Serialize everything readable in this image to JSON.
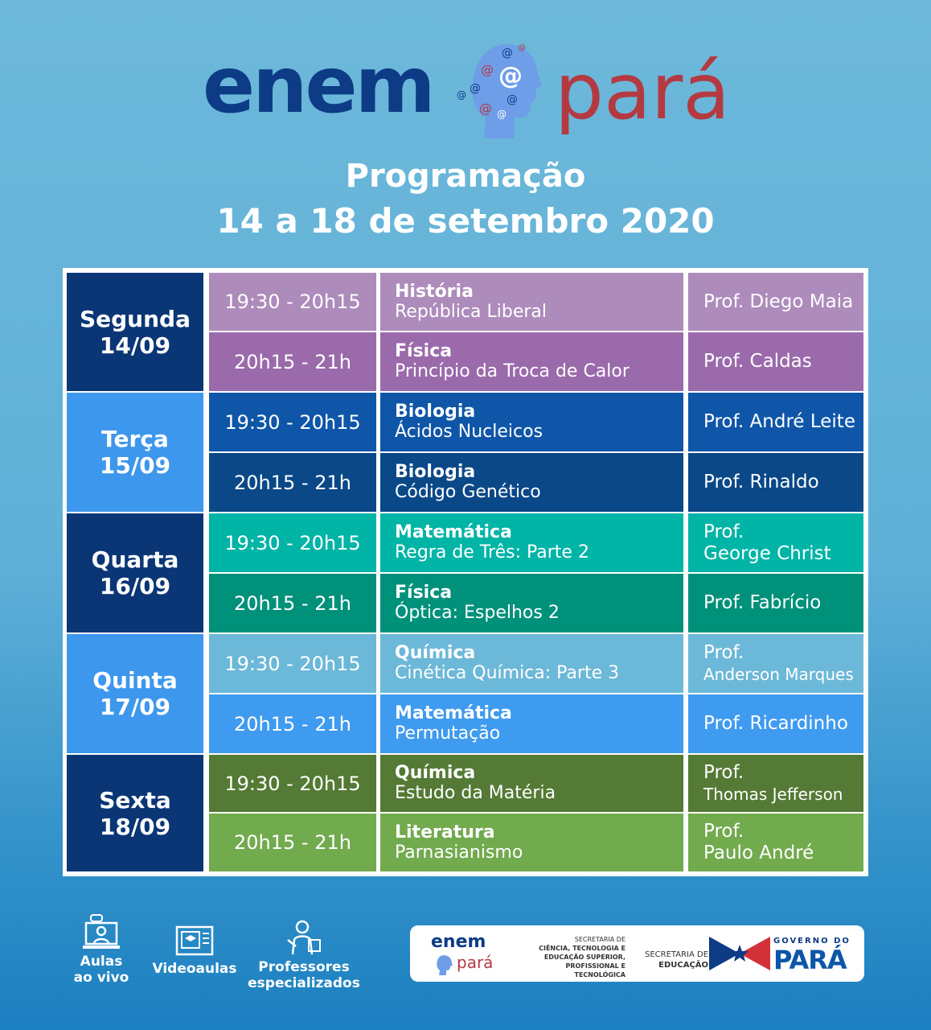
{
  "logo": {
    "left": "enem",
    "right": "pará"
  },
  "title": {
    "line1": "Programação",
    "line2": "14 a 18 de setembro 2020"
  },
  "days": [
    {
      "name": "Segunda",
      "date": "14/09",
      "color": "#0a3676"
    },
    {
      "name": "Terça",
      "date": "15/09",
      "color": "#3d97ed"
    },
    {
      "name": "Quarta",
      "date": "16/09",
      "color": "#0a3676"
    },
    {
      "name": "Quinta",
      "date": "17/09",
      "color": "#3d97ed"
    },
    {
      "name": "Sexta",
      "date": "18/09",
      "color": "#0a3676"
    }
  ],
  "rows": [
    {
      "time": "19:30 - 20h15",
      "subject": "História",
      "topic": "República Liberal",
      "prof1": "Prof. Diego Maia",
      "prof2": "",
      "color": "#ad8bbb"
    },
    {
      "time": "20h15  - 21h",
      "subject": "Física",
      "topic": "Princípio da Troca de Calor",
      "prof1": "Prof. Caldas",
      "prof2": "",
      "color": "#9a6aab"
    },
    {
      "time": "19:30 - 20h15",
      "subject": "Biologia",
      "topic": "Ácidos Nucleicos",
      "prof1": "Prof. André Leite",
      "prof2": "",
      "color": "#0f56a8"
    },
    {
      "time": "20h15  - 21h",
      "subject": "Biologia",
      "topic": "Código Genético",
      "prof1": "Prof. Rinaldo",
      "prof2": "",
      "color": "#0a4888"
    },
    {
      "time": "19:30 - 20h15",
      "subject": "Matemática",
      "topic": "Regra de Três: Parte 2",
      "prof1": "Prof.",
      "prof2": "George Christ",
      "color": "#00b4a6"
    },
    {
      "time": "20h15  - 21h",
      "subject": "Física",
      "topic": "Óptica: Espelhos 2",
      "prof1": "Prof. Fabrício",
      "prof2": "",
      "color": "#00917b"
    },
    {
      "time": "19:30 - 20h15",
      "subject": "Química",
      "topic": "Cinética Química: Parte 3",
      "prof1": "Prof.",
      "prof2": "Anderson Marques",
      "color": "#6cb8d8"
    },
    {
      "time": "20h15  - 21h",
      "subject": "Matemática",
      "topic": "Permutação",
      "prof1": "Prof. Ricardinho",
      "prof2": "",
      "color": "#3f9bef"
    },
    {
      "time": "19:30 - 20h15",
      "subject": "Química",
      "topic": "Estudo da Matéria",
      "prof1": "Prof.",
      "prof2": "Thomas Jefferson",
      "color": "#547a35"
    },
    {
      "time": "20h15  - 21h",
      "subject": "Literatura",
      "topic": "Parnasianismo",
      "prof1": "Prof.",
      "prof2": "Paulo André",
      "color": "#72aa4e"
    }
  ],
  "features": [
    {
      "label1": "Aulas",
      "label2": "ao vivo",
      "icon": "live-class-icon"
    },
    {
      "label1": "Videoaulas",
      "label2": "",
      "icon": "video-lesson-icon"
    },
    {
      "label1": "Professores",
      "label2": "especializados",
      "icon": "teacher-icon"
    }
  ],
  "partners": {
    "enem": "enem",
    "para": "pará",
    "sect_title": "SECRETARIA DE",
    "sect_line1": "CIÊNCIA, TECNOLOGIA E",
    "sect_line2": "EDUCAÇÃO SUPERIOR,",
    "sect_line3": "PROFISSIONAL E TECNOLÓGICA",
    "seduc_line1": "SECRETARIA DE",
    "seduc_line2": "EDUCAÇÃO",
    "gov": "GOVERNO DO",
    "gov_para": "PARÁ"
  }
}
